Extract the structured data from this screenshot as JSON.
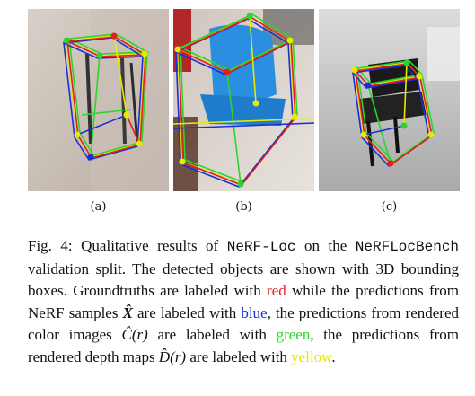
{
  "panels": [
    {
      "label": "(a)",
      "image": "photo-cabinet-frame"
    },
    {
      "label": "(b)",
      "image": "photo-blue-chair"
    },
    {
      "label": "(c)",
      "image": "photo-black-chair"
    }
  ],
  "box_colors": {
    "groundtruth": "#e0201e",
    "nerf_samples": "#1c2fd6",
    "color_images": "#2bd62b",
    "depth_maps": "#e8e800"
  },
  "caption": {
    "fig": "Fig. 4:",
    "t1": " Qualitative results of ",
    "method": "NeRF-Loc",
    "t2": " on the ",
    "bench": "NeRFLocBench",
    "t3": " validation split. The detected objects are shown with 3D bounding boxes. Groundtruths are labeled with ",
    "red": "red",
    "t4": " while the predictions from NeRF samples ",
    "X": "X̂",
    "t5": " are labeled with ",
    "blue": "blue",
    "t6": ", the predictions from rendered color images ",
    "C": "Ĉ",
    "r1": "(r)",
    "t7": " are labeled with ",
    "green": "green",
    "t8": ", the predictions from rendered depth maps ",
    "D": "D̂",
    "r2": "(r)",
    "t9": " are labeled with ",
    "yellow": "yellow",
    "t10": "."
  }
}
